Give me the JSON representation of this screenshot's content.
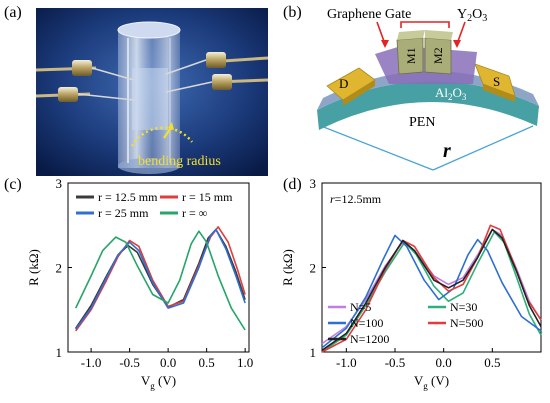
{
  "panels": {
    "a": {
      "label": "(a)",
      "annotation": "bending radius"
    },
    "b": {
      "label": "(b)",
      "labels": {
        "gate": "Graphene Gate",
        "y2o3_base": "Y",
        "y2o3_sub2": "2",
        "y2o3_o": "O",
        "y2o3_sub3": "3",
        "m1": "M1",
        "m2": "M2",
        "drain": "D",
        "source": "S",
        "al2o3_base": "Al",
        "al2o3_sub2": "2",
        "al2o3_o": "O",
        "al2o3_sub3": "3",
        "substrate": "PEN",
        "radius": "r"
      },
      "colors": {
        "pen": "#47a0a3",
        "al2o3": "#8fa5c7",
        "y2o3": "#8a6fb8",
        "electrode": "#e0b631",
        "gate": "#a9ad77",
        "arrow": "#e22424"
      }
    },
    "c": {
      "label": "(c)",
      "legend": [
        "r = 12.5 mm",
        "r = 15 mm",
        "r = 25 mm",
        "r = ∞"
      ]
    },
    "d": {
      "label": "(d)",
      "annotation_r": "r",
      "annotation_val": "=12.5mm",
      "legend": [
        "N=5",
        "N=30",
        "N=100",
        "N=500",
        "N=1200"
      ]
    }
  },
  "axis_text": {
    "ylabel": "R (kΩ)",
    "xlabel_base": "V",
    "xlabel_sub": "g",
    "xlabel_unit": " (V)"
  },
  "chart_data": [
    {
      "panel": "c",
      "type": "line",
      "xlabel": "Vg (V)",
      "ylabel": "R (kΩ)",
      "xlim": [
        -1.3,
        1.05
      ],
      "ylim": [
        1,
        3
      ],
      "xticks": [
        -1.0,
        -0.5,
        0.0,
        0.5,
        1.0
      ],
      "yticks": [
        1,
        2,
        3
      ],
      "xtick_labels": [
        "-1.0",
        "-0.5",
        "0.0",
        "0.5",
        "1.0"
      ],
      "ytick_labels": [
        "1",
        "2",
        "3"
      ],
      "series": [
        {
          "name": "r = 12.5 mm",
          "color": "#3b3b3b",
          "x": [
            -1.2,
            -1.0,
            -0.8,
            -0.65,
            -0.52,
            -0.4,
            -0.2,
            0.0,
            0.2,
            0.4,
            0.52,
            0.62,
            0.75,
            0.88,
            1.0
          ],
          "y": [
            1.28,
            1.55,
            1.9,
            2.15,
            2.26,
            2.18,
            1.8,
            1.53,
            1.62,
            2.05,
            2.35,
            2.45,
            2.25,
            1.95,
            1.62
          ]
        },
        {
          "name": "r = 15 mm",
          "color": "#e23b3b",
          "x": [
            -1.2,
            -1.0,
            -0.8,
            -0.65,
            -0.5,
            -0.38,
            -0.2,
            0.0,
            0.2,
            0.4,
            0.55,
            0.65,
            0.78,
            0.9,
            1.0
          ],
          "y": [
            1.25,
            1.5,
            1.85,
            2.13,
            2.32,
            2.25,
            1.85,
            1.54,
            1.6,
            2.02,
            2.36,
            2.48,
            2.3,
            1.98,
            1.68
          ]
        },
        {
          "name": "r = 25 mm",
          "color": "#2d6fd2",
          "x": [
            -1.2,
            -1.0,
            -0.8,
            -0.65,
            -0.5,
            -0.38,
            -0.2,
            0.0,
            0.2,
            0.4,
            0.55,
            0.62,
            0.75,
            0.88,
            1.0
          ],
          "y": [
            1.27,
            1.52,
            1.88,
            2.15,
            2.3,
            2.2,
            1.82,
            1.52,
            1.58,
            2.0,
            2.38,
            2.45,
            2.22,
            1.9,
            1.58
          ]
        },
        {
          "name": "r = ∞",
          "color": "#25a56a",
          "x": [
            -1.2,
            -1.0,
            -0.85,
            -0.68,
            -0.55,
            -0.4,
            -0.2,
            0.0,
            0.15,
            0.3,
            0.4,
            0.5,
            0.65,
            0.82,
            1.0
          ],
          "y": [
            1.52,
            1.9,
            2.2,
            2.36,
            2.3,
            2.02,
            1.68,
            1.58,
            1.85,
            2.28,
            2.43,
            2.3,
            1.9,
            1.52,
            1.26
          ]
        }
      ]
    },
    {
      "panel": "d",
      "type": "line",
      "xlabel": "Vg (V)",
      "ylabel": "R (kΩ)",
      "xlim": [
        -1.25,
        1.0
      ],
      "ylim": [
        1,
        3
      ],
      "xticks": [
        -1.0,
        -0.5,
        0.0,
        0.5
      ],
      "yticks": [
        1,
        2,
        3
      ],
      "xtick_labels": [
        "-1.0",
        "-0.5",
        "0.0",
        "0.5"
      ],
      "ytick_labels": [
        "1",
        "2",
        "3"
      ],
      "series": [
        {
          "name": "N=5",
          "color": "#c07ee0",
          "x": [
            -1.25,
            -1.0,
            -0.8,
            -0.6,
            -0.42,
            -0.3,
            -0.1,
            0.05,
            0.2,
            0.35,
            0.5,
            0.6,
            0.75,
            0.88,
            1.0
          ],
          "y": [
            1.1,
            1.3,
            1.62,
            2.02,
            2.3,
            2.2,
            1.9,
            1.8,
            1.88,
            2.15,
            2.45,
            2.38,
            1.98,
            1.6,
            1.38
          ]
        },
        {
          "name": "N=30",
          "color": "#2bb07a",
          "x": [
            -1.25,
            -1.0,
            -0.8,
            -0.6,
            -0.4,
            -0.28,
            -0.1,
            0.05,
            0.2,
            0.35,
            0.52,
            0.62,
            0.75,
            0.88,
            1.0
          ],
          "y": [
            1.0,
            1.2,
            1.55,
            1.95,
            2.3,
            2.15,
            1.78,
            1.6,
            1.7,
            2.05,
            2.42,
            2.3,
            1.88,
            1.45,
            1.2
          ]
        },
        {
          "name": "N=100",
          "color": "#2d6fd2",
          "x": [
            -1.25,
            -1.0,
            -0.8,
            -0.62,
            -0.5,
            -0.38,
            -0.2,
            -0.05,
            0.1,
            0.25,
            0.35,
            0.45,
            0.6,
            0.8,
            1.0
          ],
          "y": [
            1.05,
            1.28,
            1.65,
            2.1,
            2.38,
            2.25,
            1.85,
            1.62,
            1.75,
            2.15,
            2.33,
            2.2,
            1.82,
            1.42,
            1.25
          ]
        },
        {
          "name": "N=500",
          "color": "#e23b3b",
          "x": [
            -1.25,
            -1.0,
            -0.8,
            -0.6,
            -0.42,
            -0.3,
            -0.1,
            0.05,
            0.2,
            0.35,
            0.48,
            0.58,
            0.72,
            0.86,
            1.0
          ],
          "y": [
            1.0,
            1.15,
            1.5,
            1.98,
            2.32,
            2.25,
            1.88,
            1.72,
            1.8,
            2.12,
            2.5,
            2.45,
            2.05,
            1.62,
            1.38
          ]
        },
        {
          "name": "N=1200",
          "color": "#222222",
          "x": [
            -1.25,
            -1.0,
            -0.8,
            -0.6,
            -0.42,
            -0.3,
            -0.1,
            0.05,
            0.2,
            0.35,
            0.5,
            0.6,
            0.75,
            0.88,
            1.0
          ],
          "y": [
            1.02,
            1.22,
            1.58,
            2.0,
            2.32,
            2.2,
            1.85,
            1.76,
            1.85,
            2.12,
            2.45,
            2.35,
            1.95,
            1.55,
            1.3
          ]
        }
      ]
    }
  ]
}
